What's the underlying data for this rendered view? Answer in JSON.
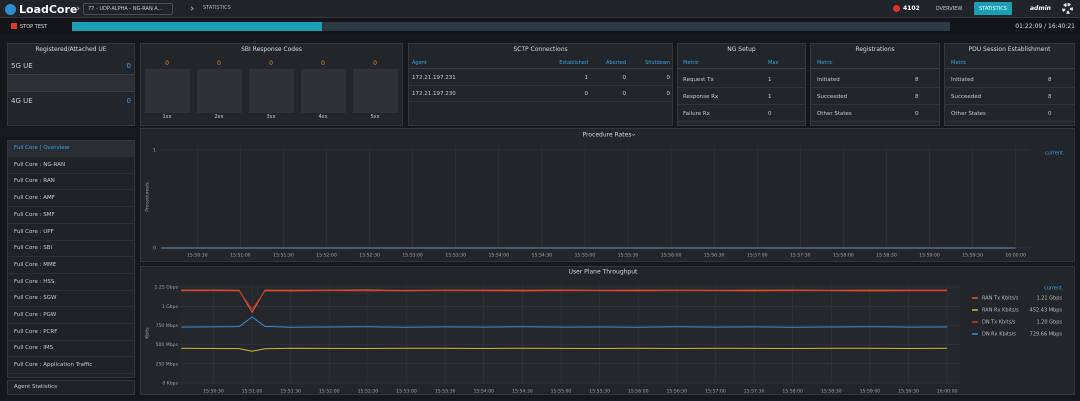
{
  "header": {
    "logo": "LoadCore",
    "breadcrumb": "77 - UDP-ALPHA - NG-RAN A...",
    "page": "STATISTICS",
    "alerts": "4102",
    "nav": [
      "OVERVIEW",
      "STATISTICS"
    ],
    "user": "admin"
  },
  "test_bar": {
    "stop": "STOP TEST",
    "elapsed": "01:22:09 / 16:40:21"
  },
  "ue_panel": {
    "title": "Registered/Attached UE",
    "rows": [
      [
        "5G UE",
        0
      ],
      [
        "4G UE",
        0
      ]
    ]
  },
  "sbi_panel": {
    "title": "SBI Response Codes",
    "codes": [
      {
        "label": "1xx",
        "value": 0
      },
      {
        "label": "2xx",
        "value": 0
      },
      {
        "label": "3xx",
        "value": 0
      },
      {
        "label": "4xx",
        "value": 0
      },
      {
        "label": "5xx",
        "value": 0
      }
    ]
  },
  "sctp_panel": {
    "title": "SCTP Connections",
    "columns": [
      "Agent",
      "Established",
      "Aborted",
      "Shutdown"
    ],
    "rows": [
      [
        "172.21.197.231",
        1,
        0,
        0
      ],
      [
        "172.21.197.230",
        0,
        0,
        0
      ]
    ]
  },
  "ng_setup": {
    "title": "NG Setup",
    "columns": [
      "Metric",
      "Max"
    ],
    "rows": [
      [
        "Request Tx",
        1
      ],
      [
        "Response Rx",
        1
      ],
      [
        "Failure Rx",
        0
      ]
    ]
  },
  "registrations": {
    "title": "Registrations",
    "columns": [
      "Metric"
    ],
    "rows": [
      [
        "Initiated",
        8
      ],
      [
        "Succeeded",
        8
      ],
      [
        "Other States",
        0
      ]
    ]
  },
  "pdu_session": {
    "title": "PDU Session Establishment",
    "columns": [
      "Metric"
    ],
    "rows": [
      [
        "Initiated",
        8
      ],
      [
        "Succeeded",
        8
      ],
      [
        "Other States",
        0
      ]
    ]
  },
  "sidebar": {
    "items": [
      "Full Core | Overview",
      "Full Core : NG-RAN",
      "Full Core : RAN",
      "Full Core : AMF",
      "Full Core : SMF",
      "Full Core : UPF",
      "Full Core : SBI",
      "Full Core : MME",
      "Full Core : HSS",
      "Full Core : SGW",
      "Full Core : PGW",
      "Full Core : PCRF",
      "Full Core : IMS",
      "Full Core : Application Traffic"
    ],
    "footer": "Agent Statistics"
  },
  "chart_data": [
    {
      "type": "line",
      "title": "Procedure Rates",
      "y_label": "Procedures/s",
      "legend_header": "current",
      "grid": true,
      "x": [
        57005,
        57150,
        57300,
        57450,
        57600
      ],
      "series": [
        {
          "color": "#6f8fb5",
          "values": [
            0,
            0,
            0,
            0,
            0
          ]
        }
      ],
      "xlim": [
        57004,
        57610
      ],
      "xticks": [
        {
          "value": 57030,
          "label": "15:50:30"
        },
        {
          "value": 57060,
          "label": "15:51:00"
        },
        {
          "value": 57090,
          "label": "15:51:30"
        },
        {
          "value": 57120,
          "label": "15:52:00"
        },
        {
          "value": 57150,
          "label": "15:52:30"
        },
        {
          "value": 57180,
          "label": "15:53:00"
        },
        {
          "value": 57210,
          "label": "15:53:30"
        },
        {
          "value": 57240,
          "label": "15:54:00"
        },
        {
          "value": 57270,
          "label": "15:54:30"
        },
        {
          "value": 57300,
          "label": "15:55:00"
        },
        {
          "value": 57330,
          "label": "15:55:30"
        },
        {
          "value": 57360,
          "label": "15:56:00"
        },
        {
          "value": 57390,
          "label": "15:56:30"
        },
        {
          "value": 57420,
          "label": "15:57:00"
        },
        {
          "value": 57450,
          "label": "15:57:30"
        },
        {
          "value": 57480,
          "label": "15:58:00"
        },
        {
          "value": 57510,
          "label": "15:58:30"
        },
        {
          "value": 57540,
          "label": "15:59:00"
        },
        {
          "value": 57570,
          "label": "15:59:30"
        },
        {
          "value": 57600,
          "label": "16:00:00"
        }
      ],
      "ylim": [
        0,
        1.04
      ],
      "yticks": [
        0,
        1
      ]
    },
    {
      "type": "line",
      "title": "User Plane Throughput",
      "y_label": "Kbits",
      "legend_header": "current",
      "grid": true,
      "x": [
        57005,
        57030,
        57050,
        57060,
        57070,
        57090,
        57120,
        57150,
        57180,
        57210,
        57240,
        57270,
        57300,
        57330,
        57360,
        57390,
        57420,
        57450,
        57480,
        57510,
        57540,
        57570,
        57600
      ],
      "series": [
        {
          "name": "RAN Tx Kbits/s",
          "current": "1.21 Gbps",
          "color": "#e0622e",
          "values": [
            1210000,
            1212000,
            1208000,
            920000,
            1211000,
            1209000,
            1210000,
            1213000,
            1207000,
            1210000,
            1211000,
            1209000,
            1212000,
            1208000,
            1210000,
            1211000,
            1209000,
            1210000,
            1212000,
            1208000,
            1210000,
            1211000,
            1210000
          ]
        },
        {
          "name": "RAN Rx Kbits/s",
          "current": "452.43 Mbps",
          "color": "#d8b23a",
          "values": [
            452000,
            450000,
            448000,
            415000,
            447000,
            453000,
            451000,
            449000,
            454000,
            452000,
            450000,
            453000,
            451000,
            449000,
            452000,
            450000,
            454000,
            451000,
            449000,
            452000,
            453000,
            450000,
            452000
          ]
        },
        {
          "name": "DN Tx Kbits/s",
          "current": "1.20 Gbps",
          "color": "#c0392b",
          "values": [
            1200000,
            1201000,
            1199000,
            960000,
            1200000,
            1198000,
            1201000,
            1200000,
            1199000,
            1202000,
            1200000,
            1198000,
            1201000,
            1200000,
            1199000,
            1201000,
            1200000,
            1199000,
            1201000,
            1200000,
            1198000,
            1200000,
            1200000
          ]
        },
        {
          "name": "DN Rx Kbits/s",
          "current": "729.66 Mbps",
          "color": "#3a8fd6",
          "values": [
            728000,
            731000,
            735000,
            860000,
            738000,
            727000,
            730000,
            732000,
            726000,
            731000,
            729000,
            733000,
            728000,
            730000,
            727000,
            732000,
            729000,
            731000,
            726000,
            730000,
            733000,
            729000,
            730000
          ]
        }
      ],
      "xlim": [
        57004,
        57610
      ],
      "xticks": [
        {
          "value": 57030,
          "label": "15:50:30"
        },
        {
          "value": 57060,
          "label": "15:51:00"
        },
        {
          "value": 57090,
          "label": "15:51:30"
        },
        {
          "value": 57120,
          "label": "15:52:00"
        },
        {
          "value": 57150,
          "label": "15:52:30"
        },
        {
          "value": 57180,
          "label": "15:53:00"
        },
        {
          "value": 57210,
          "label": "15:53:30"
        },
        {
          "value": 57240,
          "label": "15:54:00"
        },
        {
          "value": 57270,
          "label": "15:54:30"
        },
        {
          "value": 57300,
          "label": "15:55:00"
        },
        {
          "value": 57330,
          "label": "15:55:30"
        },
        {
          "value": 57360,
          "label": "15:56:00"
        },
        {
          "value": 57390,
          "label": "15:56:30"
        },
        {
          "value": 57420,
          "label": "15:57:00"
        },
        {
          "value": 57450,
          "label": "15:57:30"
        },
        {
          "value": 57480,
          "label": "15:58:00"
        },
        {
          "value": 57510,
          "label": "15:58:30"
        },
        {
          "value": 57540,
          "label": "15:59:00"
        },
        {
          "value": 57570,
          "label": "15:59:30"
        },
        {
          "value": 57600,
          "label": "16:00:00"
        }
      ],
      "ylim": [
        0,
        1290000
      ],
      "yticks": [
        {
          "value": 0,
          "label": "0 Kbps"
        },
        {
          "value": 250000,
          "label": "250 Mbps"
        },
        {
          "value": 500000,
          "label": "500 Mbps"
        },
        {
          "value": 750000,
          "label": "750 Mbps"
        },
        {
          "value": 1000000,
          "label": "1 Gbps"
        },
        {
          "value": 1250000,
          "label": "1.25 Gbps"
        }
      ]
    }
  ]
}
